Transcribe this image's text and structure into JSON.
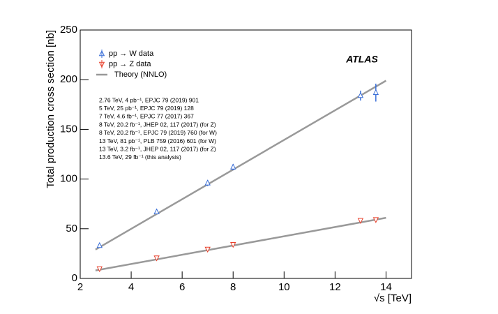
{
  "chart_data": {
    "type": "scatter",
    "xlabel": "√s  [TeV]",
    "ylabel": "Total production cross section [nb]",
    "experiment_label": "ATLAS",
    "xlim": [
      2,
      15
    ],
    "xticks": [
      2,
      4,
      6,
      8,
      10,
      12,
      14
    ],
    "ylim": [
      0,
      250
    ],
    "yticks": [
      0,
      50,
      100,
      150,
      200,
      250
    ],
    "series": [
      {
        "name": "pp → W data",
        "color": "#3a6fd8",
        "marker": "triangle-up",
        "x": [
          2.76,
          5,
          7,
          8,
          13,
          13.6
        ],
        "values": [
          33,
          67,
          96,
          112,
          184,
          187
        ],
        "errors": [
          2,
          2,
          3,
          3,
          5,
          9
        ]
      },
      {
        "name": "pp → Z data",
        "color": "#e8412c",
        "marker": "triangle-down",
        "x": [
          2.76,
          5,
          7,
          8,
          13,
          13.6
        ],
        "values": [
          9.8,
          20.7,
          29.5,
          34.2,
          58.4,
          59.2
        ],
        "errors": [
          0.5,
          0.8,
          1,
          1,
          1.5,
          2
        ]
      }
    ],
    "theory": {
      "name": "Theory (NNLO)",
      "color": "#999999",
      "lines": [
        {
          "x": [
            2.6,
            14
          ],
          "values": [
            29,
            199
          ]
        },
        {
          "x": [
            2.6,
            14
          ],
          "values": [
            8,
            61
          ]
        }
      ]
    },
    "annotations": [
      "2.76 TeV, 4 pb⁻¹, EPJC 79 (2019) 901",
      "5 TeV, 25 pb⁻¹, EPJC 79 (2019) 128",
      "7 TeV, 4.6 fb⁻¹, EPJC 77 (2017) 367",
      "8 TeV, 20.2 fb⁻¹, JHEP 02, 117 (2017) (for Z)",
      "8 TeV, 20.2 fb⁻¹, EPJC 79 (2019) 760 (for W)",
      "13 TeV, 81 pb⁻¹, PLB 759 (2016) 601 (for W)",
      "13 TeV, 3.2 fb⁻¹, JHEP 02, 117 (2017) (for Z)",
      "13.6 TeV, 29 fb⁻¹ (this analysis)"
    ]
  }
}
